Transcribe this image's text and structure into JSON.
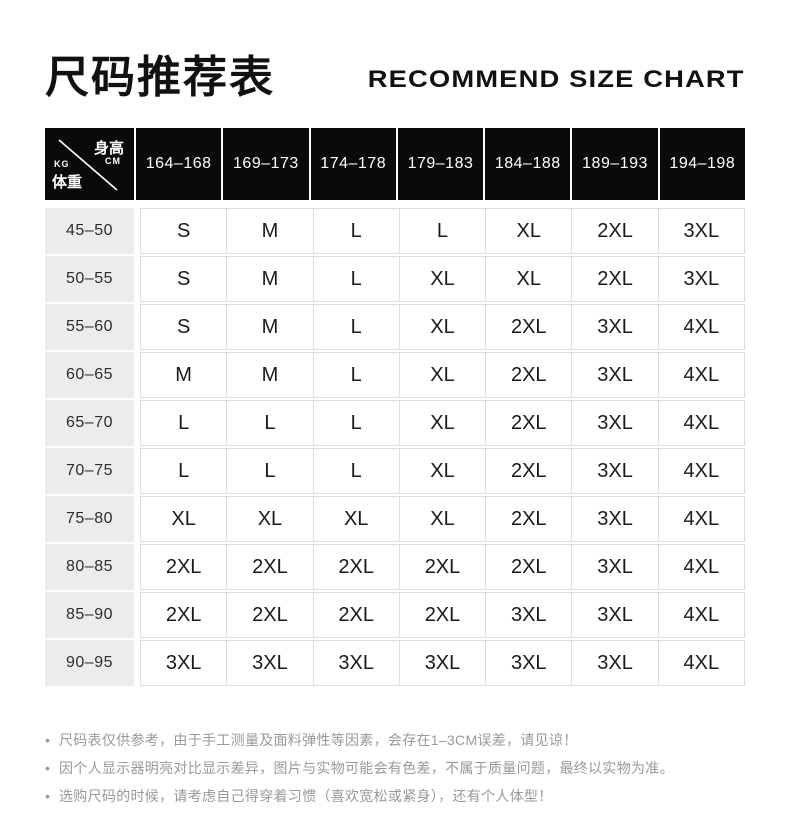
{
  "header": {
    "title_cn": "尺码推荐表",
    "title_en": "RECOMMEND SIZE CHART"
  },
  "corner": {
    "height_label": "身高",
    "height_unit": "CM",
    "weight_unit": "KG",
    "weight_label": "体重"
  },
  "chart_data": {
    "type": "table",
    "title": "尺码推荐表 / RECOMMEND SIZE CHART",
    "column_axis_label": "身高 (CM)",
    "row_axis_label": "体重 (KG)",
    "columns": [
      "164–168",
      "169–173",
      "174–178",
      "179–183",
      "184–188",
      "189–193",
      "194–198"
    ],
    "rows": [
      {
        "weight": "45–50",
        "sizes": [
          "S",
          "M",
          "L",
          "L",
          "XL",
          "2XL",
          "3XL"
        ]
      },
      {
        "weight": "50–55",
        "sizes": [
          "S",
          "M",
          "L",
          "XL",
          "XL",
          "2XL",
          "3XL"
        ]
      },
      {
        "weight": "55–60",
        "sizes": [
          "S",
          "M",
          "L",
          "XL",
          "2XL",
          "3XL",
          "4XL"
        ]
      },
      {
        "weight": "60–65",
        "sizes": [
          "M",
          "M",
          "L",
          "XL",
          "2XL",
          "3XL",
          "4XL"
        ]
      },
      {
        "weight": "65–70",
        "sizes": [
          "L",
          "L",
          "L",
          "XL",
          "2XL",
          "3XL",
          "4XL"
        ]
      },
      {
        "weight": "70–75",
        "sizes": [
          "L",
          "L",
          "L",
          "XL",
          "2XL",
          "3XL",
          "4XL"
        ]
      },
      {
        "weight": "75–80",
        "sizes": [
          "XL",
          "XL",
          "XL",
          "XL",
          "2XL",
          "3XL",
          "4XL"
        ]
      },
      {
        "weight": "80–85",
        "sizes": [
          "2XL",
          "2XL",
          "2XL",
          "2XL",
          "2XL",
          "3XL",
          "4XL"
        ]
      },
      {
        "weight": "85–90",
        "sizes": [
          "2XL",
          "2XL",
          "2XL",
          "2XL",
          "3XL",
          "3XL",
          "4XL"
        ]
      },
      {
        "weight": "90–95",
        "sizes": [
          "3XL",
          "3XL",
          "3XL",
          "3XL",
          "3XL",
          "3XL",
          "4XL"
        ]
      }
    ]
  },
  "notes": {
    "bullet": "•",
    "items": [
      "尺码表仅供参考，由于手工测量及面料弹性等因素，会存在1–3CM误差，请见谅！",
      "因个人显示器明亮对比显示差异，图片与实物可能会有色差，不属于质量问题，最终以实物为准。",
      "选购尺码的时候，请考虑自己得穿着习惯（喜欢宽松或紧身），还有个人体型！"
    ]
  },
  "colors": {
    "header_bg": "#0a0a0a",
    "header_text": "#ffffff",
    "row_label_bg": "#ececec",
    "cell_border": "#dcdcdc",
    "body_text": "#1a1a1a",
    "note_text": "#999999"
  }
}
